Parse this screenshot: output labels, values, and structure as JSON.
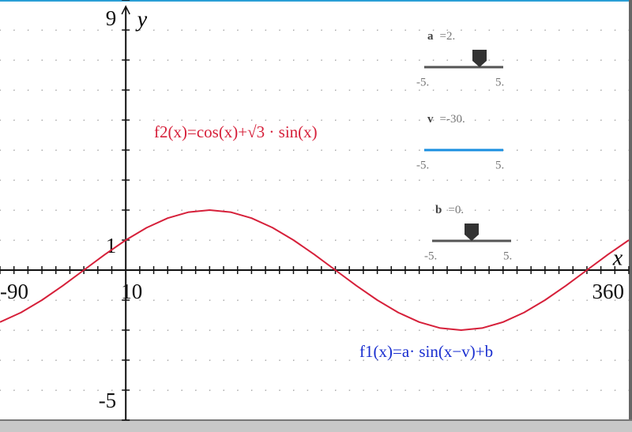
{
  "chart_data": {
    "type": "line",
    "xlabel": "x",
    "ylabel": "y",
    "xlim": [
      -90,
      360
    ],
    "ylim": [
      -5,
      9
    ],
    "xticks": [
      -90,
      10,
      360
    ],
    "yticks": [
      -5,
      1,
      9
    ],
    "grid": true,
    "x": [
      -90,
      -75,
      -60,
      -45,
      -30,
      -15,
      0,
      15,
      30,
      45,
      60,
      75,
      90,
      105,
      120,
      135,
      150,
      165,
      180,
      195,
      210,
      225,
      240,
      255,
      270,
      285,
      300,
      315,
      330,
      345,
      360
    ],
    "series": [
      {
        "name": "f2(x)=cos(x)+√3 · sin(x)",
        "color": "#d6203a",
        "values": [
          -1.732,
          -1.414,
          -1,
          -0.518,
          0,
          0.518,
          1,
          1.414,
          1.732,
          1.932,
          2,
          1.932,
          1.732,
          1.414,
          1,
          0.518,
          0,
          -0.518,
          -1,
          -1.414,
          -1.732,
          -1.932,
          -2,
          -1.932,
          -1.732,
          -1.414,
          -1,
          -0.518,
          0,
          0.518,
          1
        ]
      }
    ],
    "annotations": [
      {
        "text": "f1(x)=a· sin(x−v)+b",
        "color": "#1a2fd0"
      }
    ],
    "sliders": [
      {
        "name": "a",
        "value": 2,
        "value_label": "2.",
        "color": "#555555",
        "min": {
          "value": -5,
          "label": "-5."
        },
        "max": {
          "value": 5,
          "label": "5."
        }
      },
      {
        "name": "v",
        "value": -30,
        "value_label": "-30.",
        "color": "#1a8fe0",
        "min": {
          "value": -5,
          "label": "-5."
        },
        "max": {
          "value": 5,
          "label": "5."
        }
      },
      {
        "name": "b",
        "value": 0,
        "value_label": "0.",
        "color": "#555555",
        "min": {
          "value": -5,
          "label": "-5."
        },
        "max": {
          "value": 5,
          "label": "5."
        }
      }
    ]
  }
}
